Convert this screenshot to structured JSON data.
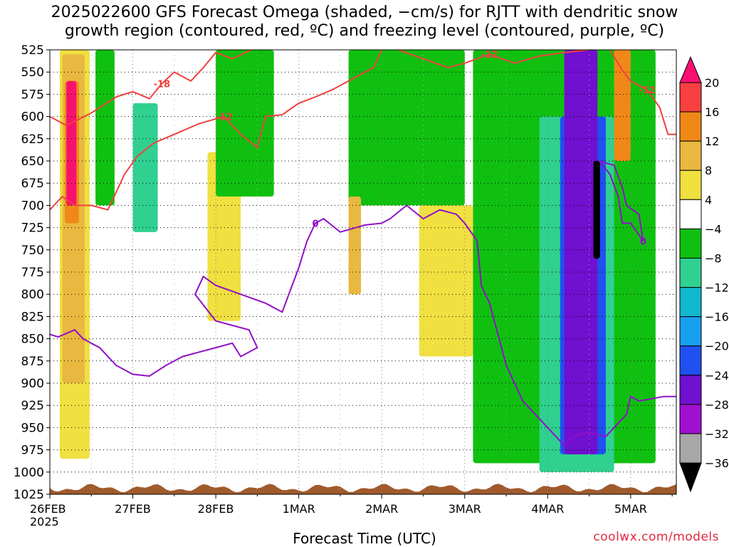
{
  "title_line1": "2025022600 GFS Forecast Omega (shaded, −cm/s) for RJTT with dendritic snow",
  "title_line2": "growth region (contoured, red, ºC) and freezing level (contoured, purple, ºC)",
  "credit": "coolwx.com/models",
  "chart_data": {
    "type": "heatmap",
    "xlabel": "Forecast Time (UTC)",
    "ylabel": "",
    "x_tick_labels": [
      "26FEB",
      "27FEB",
      "28FEB",
      "1MAR",
      "2MAR",
      "3MAR",
      "4MAR",
      "5MAR"
    ],
    "x_year_label": "2025",
    "x_range_days": [
      0,
      7.55
    ],
    "y_tick_labels": [
      525,
      550,
      575,
      600,
      625,
      650,
      675,
      700,
      725,
      750,
      775,
      800,
      825,
      850,
      875,
      900,
      925,
      950,
      975,
      1000,
      1025
    ],
    "y_range_hpa": [
      525,
      1025
    ],
    "y_inverted": true,
    "grid": true,
    "colorbar": {
      "labels": [
        "20",
        "16",
        "12",
        "8",
        "4",
        "−4",
        "−8",
        "−12",
        "−16",
        "−20",
        "−24",
        "−28",
        "−32",
        "−36"
      ],
      "colors": [
        "#f81070",
        "#f84040",
        "#f08818",
        "#e8b840",
        "#f0e040",
        "#ffffff",
        "#10c010",
        "#30d090",
        "#10b8d0",
        "#18a0f0",
        "#2050f0",
        "#7010d0",
        "#a010d0",
        "#a8a8a8",
        "#000000"
      ]
    },
    "freezing_level_series": {
      "label": "0",
      "color": "#9010c8",
      "points": [
        [
          0.0,
          845
        ],
        [
          0.1,
          848
        ],
        [
          0.3,
          840
        ],
        [
          0.4,
          850
        ],
        [
          0.6,
          860
        ],
        [
          0.8,
          880
        ],
        [
          1.0,
          890
        ],
        [
          1.2,
          892
        ],
        [
          1.4,
          880
        ],
        [
          1.6,
          870
        ],
        [
          1.8,
          865
        ],
        [
          2.0,
          860
        ],
        [
          2.2,
          855
        ],
        [
          2.3,
          870
        ],
        [
          2.5,
          860
        ],
        [
          2.4,
          840
        ],
        [
          2.0,
          830
        ],
        [
          1.75,
          800
        ],
        [
          1.85,
          780
        ],
        [
          2.0,
          790
        ],
        [
          2.3,
          800
        ],
        [
          2.6,
          810
        ],
        [
          2.8,
          820
        ],
        [
          2.9,
          795
        ],
        [
          3.0,
          770
        ],
        [
          3.1,
          740
        ],
        [
          3.2,
          720
        ],
        [
          3.3,
          715
        ],
        [
          3.5,
          730
        ],
        [
          3.8,
          722
        ],
        [
          4.0,
          720
        ],
        [
          4.1,
          715
        ],
        [
          4.3,
          700
        ],
        [
          4.5,
          715
        ],
        [
          4.7,
          705
        ],
        [
          4.9,
          710
        ],
        [
          5.0,
          720
        ],
        [
          5.15,
          740
        ],
        [
          5.2,
          790
        ],
        [
          5.3,
          810
        ],
        [
          5.5,
          880
        ],
        [
          5.7,
          920
        ],
        [
          6.0,
          950
        ],
        [
          6.2,
          970
        ],
        [
          6.3,
          960
        ],
        [
          6.5,
          955
        ],
        [
          6.7,
          960
        ],
        [
          6.8,
          950
        ],
        [
          6.95,
          935
        ],
        [
          7.0,
          915
        ],
        [
          7.1,
          920
        ],
        [
          7.4,
          915
        ],
        [
          7.55,
          915
        ]
      ]
    },
    "freezing_level_upper_series": {
      "label": "0",
      "color": "#9010c8",
      "points": [
        [
          6.62,
          650
        ],
        [
          6.8,
          655
        ],
        [
          6.9,
          680
        ],
        [
          6.95,
          700
        ],
        [
          7.1,
          710
        ],
        [
          7.15,
          740
        ],
        [
          7.0,
          720
        ],
        [
          6.9,
          720
        ],
        [
          6.85,
          690
        ],
        [
          6.75,
          665
        ],
        [
          6.62,
          650
        ]
      ]
    },
    "dendritic_contours": [
      {
        "label": "-18",
        "color": "#f04040",
        "points": [
          [
            0.0,
            600
          ],
          [
            0.2,
            610
          ],
          [
            0.5,
            596
          ],
          [
            0.8,
            578
          ],
          [
            1.0,
            572
          ],
          [
            1.2,
            580
          ],
          [
            1.35,
            563
          ],
          [
            1.5,
            550
          ],
          [
            1.7,
            560
          ],
          [
            1.85,
            545
          ],
          [
            2.0,
            528
          ],
          [
            2.2,
            535
          ],
          [
            2.45,
            524
          ]
        ]
      },
      {
        "label": "-12",
        "color": "#f04040",
        "points": [
          [
            0.0,
            705
          ],
          [
            0.15,
            690
          ],
          [
            0.3,
            700
          ],
          [
            0.5,
            700
          ],
          [
            0.7,
            705
          ],
          [
            0.9,
            665
          ],
          [
            1.05,
            645
          ],
          [
            1.25,
            630
          ],
          [
            1.5,
            620
          ],
          [
            1.8,
            608
          ],
          [
            2.1,
            600
          ],
          [
            2.3,
            620
          ],
          [
            2.5,
            635
          ],
          [
            2.6,
            600
          ],
          [
            2.8,
            598
          ],
          [
            3.0,
            585
          ],
          [
            3.2,
            578
          ],
          [
            3.4,
            570
          ],
          [
            3.6,
            560
          ],
          [
            3.9,
            545
          ],
          [
            4.0,
            525
          ]
        ]
      },
      {
        "label": "-12",
        "color": "#f04040",
        "points": [
          [
            4.2,
            525
          ],
          [
            4.5,
            535
          ],
          [
            4.8,
            545
          ],
          [
            5.0,
            540
          ],
          [
            5.3,
            530
          ],
          [
            5.6,
            540
          ],
          [
            5.9,
            532
          ],
          [
            6.2,
            528
          ],
          [
            6.5,
            525
          ]
        ]
      },
      {
        "label": "-12",
        "color": "#f04040",
        "points": [
          [
            6.75,
            525
          ],
          [
            6.9,
            548
          ],
          [
            7.0,
            560
          ],
          [
            7.2,
            570
          ],
          [
            7.35,
            590
          ],
          [
            7.45,
            620
          ],
          [
            7.55,
            620
          ]
        ]
      }
    ],
    "shading_regions": [
      {
        "level": "4",
        "color": "#f0e040",
        "x": [
          0.12,
          0.48
        ],
        "p": [
          525,
          985
        ]
      },
      {
        "level": "8",
        "color": "#e8b840",
        "x": [
          0.15,
          0.42
        ],
        "p": [
          530,
          900
        ]
      },
      {
        "level": "12",
        "color": "#f08818",
        "x": [
          0.18,
          0.35
        ],
        "p": [
          560,
          720
        ]
      },
      {
        "level": "20",
        "color": "#f81070",
        "x": [
          0.2,
          0.32
        ],
        "p": [
          560,
          700
        ]
      },
      {
        "level": "-8",
        "color": "#10c010",
        "x": [
          0.55,
          0.78
        ],
        "p": [
          525,
          700
        ]
      },
      {
        "level": "-12",
        "color": "#30d090",
        "x": [
          1.0,
          1.3
        ],
        "p": [
          585,
          730
        ]
      },
      {
        "level": "4",
        "color": "#f0e040",
        "x": [
          1.9,
          2.3
        ],
        "p": [
          640,
          830
        ]
      },
      {
        "level": "-8",
        "color": "#10c010",
        "x": [
          2.0,
          2.7
        ],
        "p": [
          525,
          690
        ]
      },
      {
        "level": "-8",
        "color": "#10c010",
        "x": [
          3.6,
          5.0
        ],
        "p": [
          525,
          700
        ]
      },
      {
        "level": "8",
        "color": "#e8b840",
        "x": [
          3.6,
          3.75
        ],
        "p": [
          690,
          800
        ]
      },
      {
        "level": "4",
        "color": "#f0e040",
        "x": [
          4.45,
          5.1
        ],
        "p": [
          700,
          870
        ]
      },
      {
        "level": "-8",
        "color": "#10c010",
        "x": [
          5.1,
          7.3
        ],
        "p": [
          525,
          990
        ]
      },
      {
        "level": "-12",
        "color": "#30d090",
        "x": [
          5.9,
          6.8
        ],
        "p": [
          600,
          1000
        ]
      },
      {
        "level": "-20",
        "color": "#2050f0",
        "x": [
          6.15,
          6.7
        ],
        "p": [
          600,
          980
        ]
      },
      {
        "level": "-28",
        "color": "#7010d0",
        "x": [
          6.2,
          6.6
        ],
        "p": [
          525,
          980
        ]
      },
      {
        "level": "-36",
        "color": "#000000",
        "x": [
          6.55,
          6.63
        ],
        "p": [
          650,
          760
        ]
      },
      {
        "level": "12",
        "color": "#f08818",
        "x": [
          6.8,
          7.0
        ],
        "p": [
          525,
          650
        ]
      }
    ],
    "terrain_color": "#a05a2c"
  }
}
